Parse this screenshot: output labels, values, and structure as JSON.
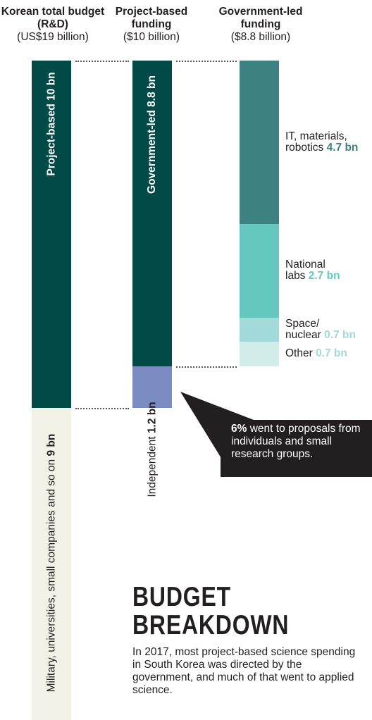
{
  "headers": [
    {
      "title": "Korean total budget (R&D)",
      "sub": "(US$19 billion)"
    },
    {
      "title": "Project-based funding",
      "sub": "($10 billion)"
    },
    {
      "title": "Government-led funding",
      "sub": "($8.8 billion)"
    }
  ],
  "colors": {
    "dark_teal": "#014a47",
    "cream": "#f2f1e6",
    "independent": "#7b8cc2",
    "it": "#3d8280",
    "labs": "#65c8c0",
    "space": "#a2dad9",
    "other": "#d2ece9",
    "text": "#231f20"
  },
  "chart_data": {
    "type": "bar",
    "unit": "US$ billion",
    "bars": [
      {
        "column": "Korean total budget (R&D)",
        "segments": [
          {
            "label": "Project-based",
            "value": 10
          },
          {
            "label": "Military, universities, small companies and so on",
            "value": 9
          }
        ]
      },
      {
        "column": "Project-based funding",
        "segments": [
          {
            "label": "Government-led",
            "value": 8.8
          },
          {
            "label": "Independent",
            "value": 1.2
          }
        ]
      },
      {
        "column": "Government-led funding",
        "segments": [
          {
            "label": "IT, materials, robotics",
            "value": 4.7
          },
          {
            "label": "National labs",
            "value": 2.7
          },
          {
            "label": "Space/ nuclear",
            "value": 0.7
          },
          {
            "label": "Other",
            "value": 0.7
          }
        ]
      }
    ]
  },
  "labels": {
    "project_based_prefix": "Project-based ",
    "project_based_value": "10 bn",
    "military_prefix": "Military, universities, small companies and so on ",
    "military_value": "9 bn",
    "gov_led_prefix": "Government-led ",
    "gov_led_value": "8.8 bn",
    "independent_prefix": "Independent ",
    "independent_value": "1.2 bn",
    "it_line1": "IT, materials,",
    "it_line2": "robotics ",
    "it_value": "4.7 bn",
    "labs_line1": "National",
    "labs_line2": "labs ",
    "labs_value": "2.7 bn",
    "space_line1": "Space/",
    "space_line2": "nuclear ",
    "space_value": "0.7 bn",
    "other_line": "Other ",
    "other_value": "0.7 bn"
  },
  "callout": {
    "bold": "6%",
    "text": " went to proposals from individuals and small research groups."
  },
  "headline": {
    "line1": "BUDGET",
    "line2": "BREAKDOWN"
  },
  "description": "In 2017, most project-based science spending in South Korea was directed by the government, and much of that went to applied science."
}
